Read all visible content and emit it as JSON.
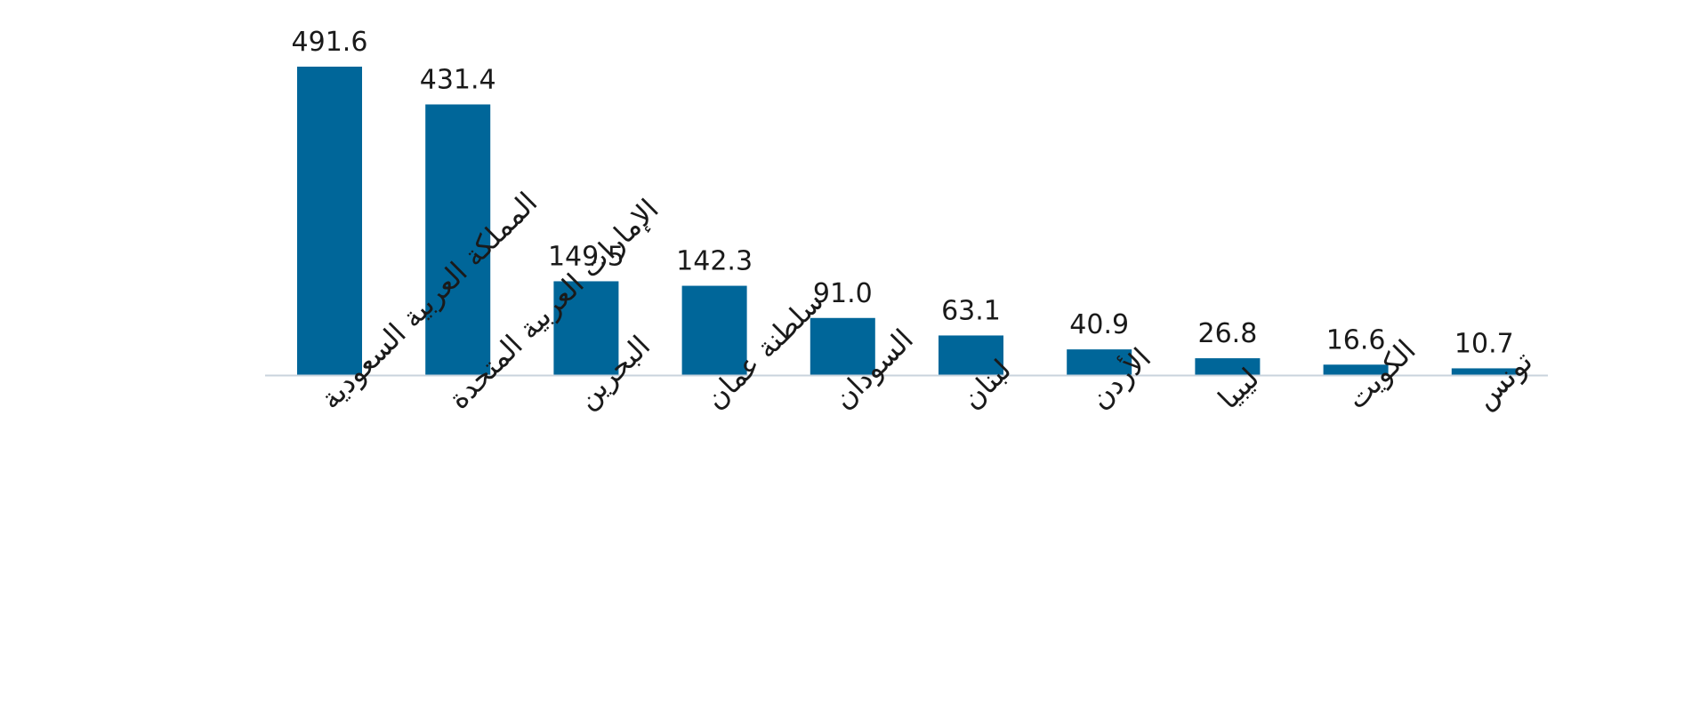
{
  "chart_data": {
    "type": "bar",
    "categories": [
      "المملكة العربية السعودية",
      "الإمارات العربية المتحدة",
      "البحرين",
      "سلطنة عمان",
      "السودان",
      "لبنان",
      "الأردن",
      "ليبيا",
      "الكويت",
      "تونس"
    ],
    "values": [
      491.6,
      431.4,
      149.5,
      142.3,
      91.0,
      63.1,
      40.9,
      26.8,
      16.6,
      10.7
    ],
    "value_labels": [
      "491.6",
      "431.4",
      "149.5",
      "142.3",
      "91.0",
      "63.1",
      "40.9",
      "26.8",
      "16.6",
      "10.7"
    ],
    "ylim": [
      0,
      491.6
    ],
    "grid": false,
    "legend": "none",
    "bar_color": "#006699",
    "axis_color": "#c9d3dd"
  }
}
